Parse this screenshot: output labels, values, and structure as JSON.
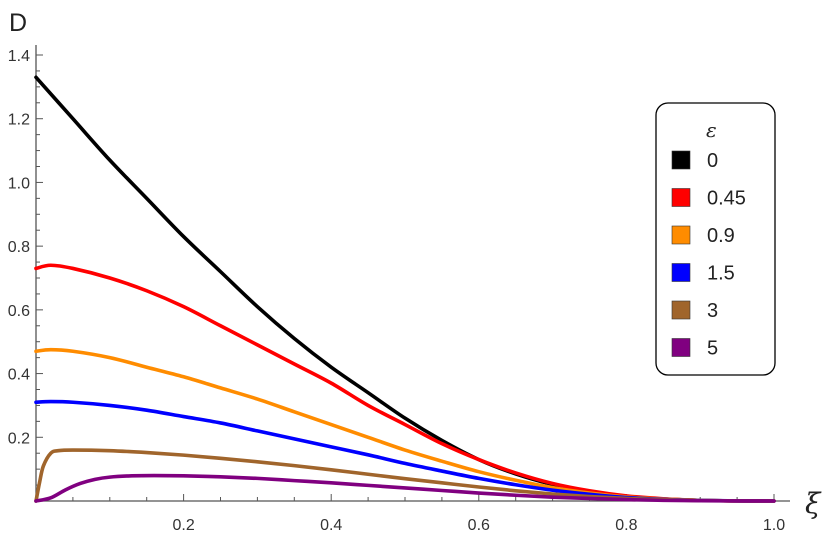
{
  "chart_data": {
    "type": "line",
    "title": "",
    "xlabel": "ξ",
    "ylabel": "D",
    "xlim": [
      0,
      1.0
    ],
    "ylim": [
      0,
      1.4
    ],
    "x_ticks": [
      0.2,
      0.4,
      0.6,
      0.8,
      1.0
    ],
    "x_tick_labels": [
      "0.2",
      "0.4",
      "0.6",
      "0.8",
      "1.0"
    ],
    "y_ticks": [
      0.2,
      0.4,
      0.6,
      0.8,
      1.0,
      1.2,
      1.4
    ],
    "y_tick_labels": [
      "0.2",
      "0.4",
      "0.6",
      "0.8",
      "1.0",
      "1.2",
      "1.4"
    ],
    "grid": false,
    "legend": {
      "title": "ε",
      "placement": "right"
    },
    "series": [
      {
        "name": "0",
        "color": "#000000",
        "x": [
          0,
          0.05,
          0.1,
          0.15,
          0.2,
          0.25,
          0.3,
          0.35,
          0.4,
          0.45,
          0.5,
          0.55,
          0.6,
          0.65,
          0.7,
          0.75,
          0.8,
          0.85,
          0.9,
          0.95,
          1.0
        ],
        "values": [
          1.33,
          1.2,
          1.07,
          0.95,
          0.83,
          0.72,
          0.61,
          0.51,
          0.42,
          0.34,
          0.26,
          0.19,
          0.13,
          0.085,
          0.052,
          0.029,
          0.014,
          0.006,
          0.002,
          0.0005,
          0
        ]
      },
      {
        "name": "0.45",
        "color": "#ff0000",
        "x": [
          0,
          0.02,
          0.05,
          0.1,
          0.15,
          0.2,
          0.25,
          0.3,
          0.35,
          0.4,
          0.45,
          0.5,
          0.55,
          0.6,
          0.65,
          0.7,
          0.75,
          0.8,
          0.85,
          0.9,
          0.95,
          1.0
        ],
        "values": [
          0.73,
          0.74,
          0.73,
          0.7,
          0.66,
          0.61,
          0.55,
          0.49,
          0.43,
          0.37,
          0.3,
          0.24,
          0.18,
          0.13,
          0.088,
          0.055,
          0.032,
          0.016,
          0.007,
          0.002,
          0.0005,
          0
        ]
      },
      {
        "name": "0.9",
        "color": "#ff8c00",
        "x": [
          0,
          0.02,
          0.05,
          0.1,
          0.15,
          0.2,
          0.25,
          0.3,
          0.35,
          0.4,
          0.45,
          0.5,
          0.55,
          0.6,
          0.65,
          0.7,
          0.75,
          0.8,
          0.85,
          0.9,
          0.95,
          1.0
        ],
        "values": [
          0.47,
          0.475,
          0.47,
          0.45,
          0.42,
          0.39,
          0.355,
          0.32,
          0.28,
          0.24,
          0.2,
          0.16,
          0.125,
          0.092,
          0.065,
          0.042,
          0.025,
          0.013,
          0.006,
          0.002,
          0.0005,
          0
        ]
      },
      {
        "name": "1.5",
        "color": "#0000ff",
        "x": [
          0,
          0.02,
          0.05,
          0.1,
          0.15,
          0.2,
          0.25,
          0.3,
          0.35,
          0.4,
          0.45,
          0.5,
          0.55,
          0.6,
          0.65,
          0.7,
          0.75,
          0.8,
          0.85,
          0.9,
          0.95,
          1.0
        ],
        "values": [
          0.31,
          0.312,
          0.31,
          0.3,
          0.285,
          0.265,
          0.245,
          0.22,
          0.195,
          0.17,
          0.145,
          0.118,
          0.094,
          0.071,
          0.051,
          0.034,
          0.021,
          0.011,
          0.005,
          0.0018,
          0.0004,
          0
        ]
      },
      {
        "name": "3",
        "color": "#a0652c",
        "x": [
          0,
          0.005,
          0.01,
          0.02,
          0.03,
          0.05,
          0.1,
          0.15,
          0.2,
          0.25,
          0.3,
          0.35,
          0.4,
          0.45,
          0.5,
          0.55,
          0.6,
          0.65,
          0.7,
          0.75,
          0.8,
          0.85,
          0.9,
          0.95,
          1.0
        ],
        "values": [
          0,
          0.06,
          0.11,
          0.15,
          0.158,
          0.16,
          0.158,
          0.152,
          0.144,
          0.134,
          0.123,
          0.111,
          0.098,
          0.084,
          0.07,
          0.057,
          0.044,
          0.032,
          0.022,
          0.014,
          0.008,
          0.004,
          0.0015,
          0.0004,
          0
        ]
      },
      {
        "name": "5",
        "color": "#800080",
        "x": [
          0,
          0.02,
          0.04,
          0.06,
          0.08,
          0.1,
          0.13,
          0.16,
          0.2,
          0.25,
          0.3,
          0.35,
          0.4,
          0.45,
          0.5,
          0.55,
          0.6,
          0.65,
          0.7,
          0.75,
          0.8,
          0.85,
          0.9,
          0.95,
          1.0
        ],
        "values": [
          0,
          0.01,
          0.035,
          0.055,
          0.068,
          0.075,
          0.079,
          0.08,
          0.079,
          0.076,
          0.071,
          0.064,
          0.057,
          0.049,
          0.041,
          0.033,
          0.025,
          0.018,
          0.012,
          0.008,
          0.0045,
          0.002,
          0.0008,
          0.0002,
          0
        ]
      }
    ]
  }
}
